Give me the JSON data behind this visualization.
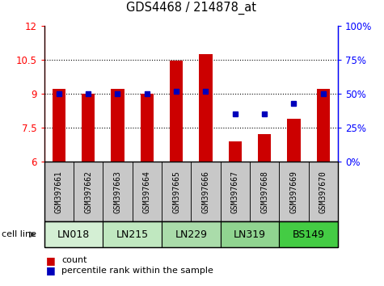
{
  "title": "GDS4468 / 214878_at",
  "samples": [
    "GSM397661",
    "GSM397662",
    "GSM397663",
    "GSM397664",
    "GSM397665",
    "GSM397666",
    "GSM397667",
    "GSM397668",
    "GSM397669",
    "GSM397670"
  ],
  "count_values": [
    9.2,
    9.0,
    9.2,
    9.0,
    10.45,
    10.75,
    6.9,
    7.2,
    7.9,
    9.2
  ],
  "percentile_values": [
    50,
    50,
    50,
    50,
    52,
    52,
    35,
    35,
    43,
    50
  ],
  "cell_lines": [
    {
      "label": "LN018",
      "start": 0,
      "end": 2,
      "color": "#d4efd4"
    },
    {
      "label": "LN215",
      "start": 2,
      "end": 4,
      "color": "#c0e8c0"
    },
    {
      "label": "LN229",
      "start": 4,
      "end": 6,
      "color": "#aadcaa"
    },
    {
      "label": "LN319",
      "start": 6,
      "end": 8,
      "color": "#90d490"
    },
    {
      "label": "BS149",
      "start": 8,
      "end": 10,
      "color": "#44cc44"
    }
  ],
  "ylim_left": [
    6,
    12
  ],
  "ylim_right": [
    0,
    100
  ],
  "yticks_left": [
    6,
    7.5,
    9,
    10.5,
    12
  ],
  "yticks_right": [
    0,
    25,
    50,
    75,
    100
  ],
  "bar_color": "#cc0000",
  "dot_color": "#0000bb",
  "bar_width": 0.45,
  "sample_bg_color": "#c8c8c8",
  "bg_white": "#ffffff"
}
